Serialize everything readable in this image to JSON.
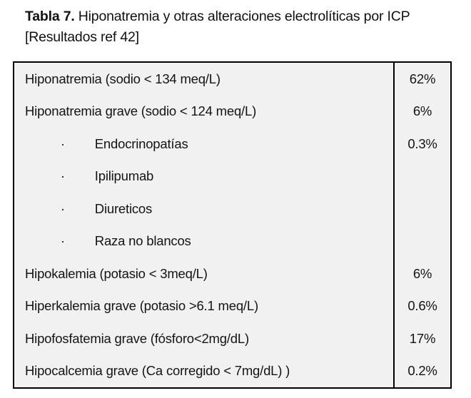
{
  "caption": {
    "bold": "Tabla 7.",
    "rest": " Hiponatremia y otras alteraciones electrolíticas por ICP [Resultados ref 42]"
  },
  "table": {
    "bullet_char": "·",
    "rows": [
      {
        "label": "Hiponatremia (sodio < 134 meq/L)",
        "value": "62%",
        "indent": false
      },
      {
        "label": "Hiponatremia grave (sodio < 124 meq/L)",
        "value": "6%",
        "indent": false
      },
      {
        "label": "Endocrinopatías",
        "value": "0.3%",
        "indent": true
      },
      {
        "label": "Ipilipumab",
        "value": "",
        "indent": true
      },
      {
        "label": "Diureticos",
        "value": "",
        "indent": true
      },
      {
        "label": "Raza no blancos",
        "value": "",
        "indent": true
      },
      {
        "label": "Hipokalemia (potasio < 3meq/L)",
        "value": "6%",
        "indent": false
      },
      {
        "label": "Hiperkalemia grave (potasio >6.1 meq/L)",
        "value": "0.6%",
        "indent": false
      },
      {
        "label": "Hipofosfatemia grave (fósforo<2mg/dL)",
        "value": "17%",
        "indent": false
      },
      {
        "label": "Hipocalcemia grave (Ca corregido < 7mg/dL) )",
        "value": "0.2%",
        "indent": false
      }
    ]
  },
  "colors": {
    "table_background": "#f1f1f1",
    "border": "#000000",
    "text": "#141414",
    "page_background": "#ffffff"
  }
}
